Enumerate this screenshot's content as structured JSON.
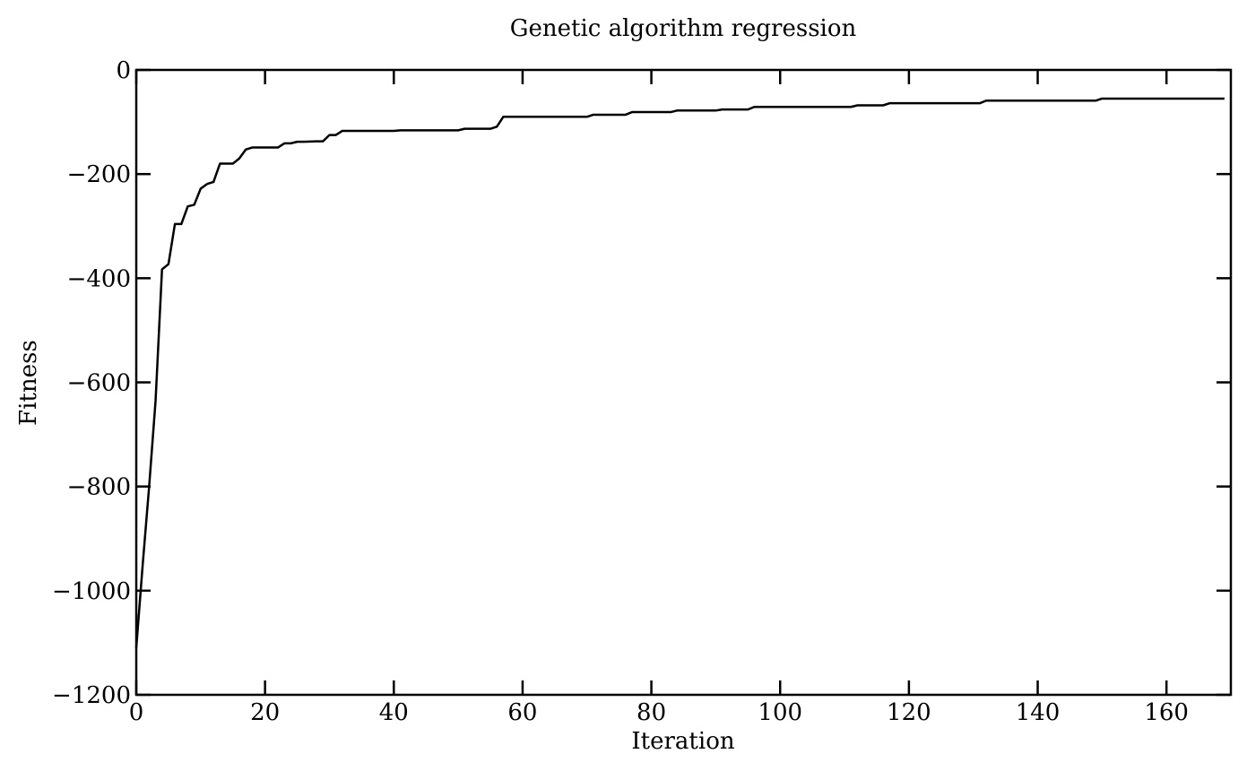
{
  "chart_data": {
    "type": "line",
    "title": "Genetic algorithm regression",
    "xlabel": "Iteration",
    "ylabel": "Fitness",
    "xlim": [
      0,
      170
    ],
    "ylim": [
      -1200,
      0
    ],
    "xticks": [
      0,
      20,
      40,
      60,
      80,
      100,
      120,
      140,
      160
    ],
    "yticks": [
      0,
      -200,
      -400,
      -600,
      -800,
      -1000,
      -1200
    ],
    "xtick_labels": [
      "0",
      "20",
      "40",
      "60",
      "80",
      "100",
      "120",
      "140",
      "160"
    ],
    "ytick_labels": [
      "0",
      "−200",
      "−400",
      "−600",
      "−800",
      "−1000",
      "−1200"
    ],
    "grid": false,
    "color": "#000000",
    "series": [
      {
        "x": [
          0,
          1,
          2,
          3,
          4,
          5,
          6,
          7,
          8,
          9,
          10,
          11,
          12,
          13,
          15,
          16,
          17,
          18,
          22,
          23,
          24,
          25,
          26,
          28,
          29,
          30,
          31,
          32,
          40,
          41,
          50,
          51,
          55,
          56,
          57,
          70,
          71,
          76,
          77,
          83,
          84,
          90,
          91,
          95,
          96,
          111,
          112,
          116,
          117,
          131,
          132,
          149,
          150,
          169
        ],
        "y": [
          -1110,
          -950,
          -800,
          -635,
          -383,
          -373,
          -296,
          -296,
          -262,
          -259,
          -228,
          -219,
          -215,
          -180,
          -180,
          -170,
          -153,
          -149,
          -149,
          -141,
          -141,
          -138,
          -138,
          -137,
          -137,
          -125,
          -125,
          -117,
          -117,
          -116,
          -116,
          -113,
          -113,
          -109,
          -90,
          -90,
          -86,
          -86,
          -81,
          -81,
          -78,
          -78,
          -76,
          -76,
          -71,
          -71,
          -68,
          -68,
          -64,
          -64,
          -59,
          -59,
          -55,
          -55
        ]
      }
    ]
  }
}
